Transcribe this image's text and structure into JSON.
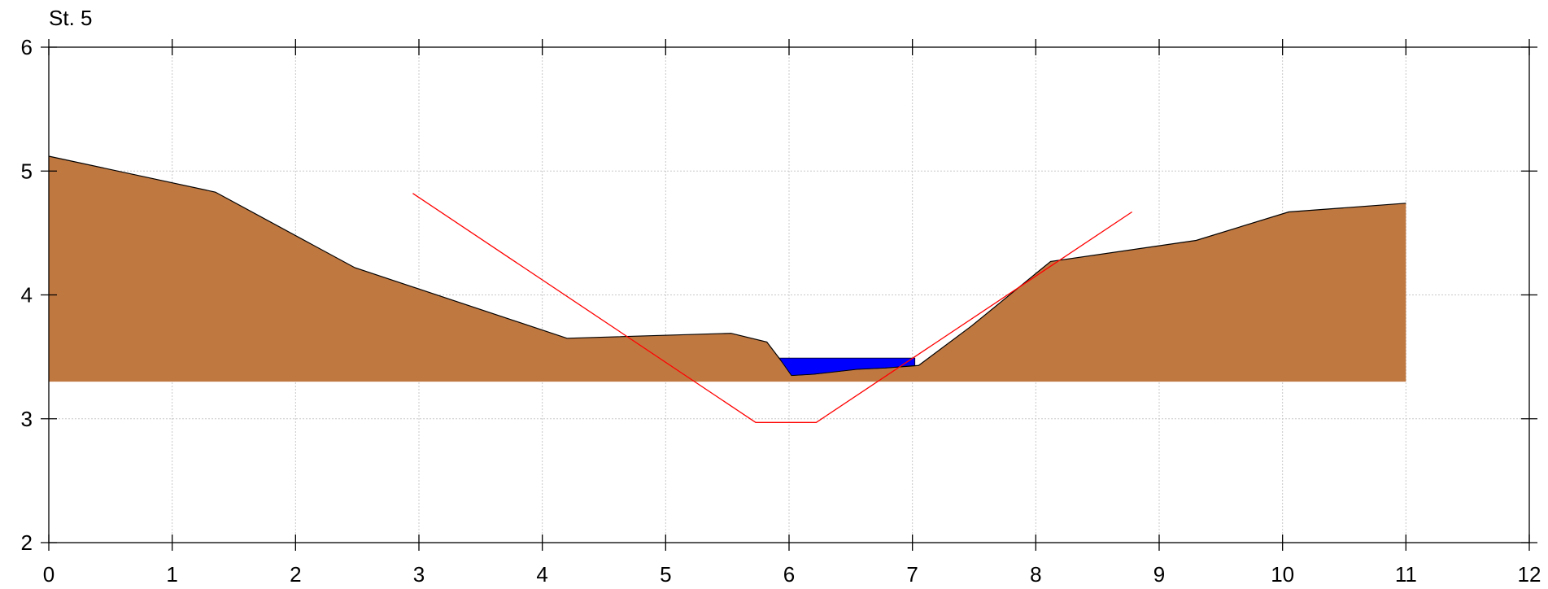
{
  "chart_data": {
    "type": "area",
    "title": "St. 5",
    "xlabel": "",
    "ylabel": "",
    "xlim": [
      0,
      12
    ],
    "ylim": [
      2,
      6
    ],
    "x_ticks": [
      0,
      1,
      2,
      3,
      4,
      5,
      6,
      7,
      8,
      9,
      10,
      11,
      12
    ],
    "y_ticks": [
      2,
      3,
      4,
      5,
      6
    ],
    "grid": true,
    "baseline": 3.3,
    "series": [
      {
        "kind": "terrain",
        "color": "#c07841",
        "outline": "#000000",
        "x": [
          0,
          1.35,
          2.48,
          4.2,
          5.53,
          5.82,
          5.95,
          6.02,
          6.2,
          6.55,
          6.78,
          7.05,
          7.48,
          8.12,
          9.3,
          10.05,
          11.0
        ],
        "y": [
          5.12,
          4.83,
          4.22,
          3.65,
          3.69,
          3.62,
          3.45,
          3.35,
          3.36,
          3.4,
          3.41,
          3.43,
          3.75,
          4.27,
          4.44,
          4.67,
          4.74
        ]
      },
      {
        "kind": "water",
        "color": "#0000ff",
        "level": 3.49,
        "x": [
          5.92,
          7.02
        ],
        "bed_x": [
          5.92,
          6.02,
          6.2,
          6.55,
          6.78,
          7.02
        ],
        "bed_y": [
          3.49,
          3.35,
          3.36,
          3.4,
          3.41,
          3.43
        ]
      },
      {
        "kind": "design",
        "color": "#ff0000",
        "x": [
          2.95,
          5.73,
          6.22,
          8.78
        ],
        "y": [
          4.82,
          2.97,
          2.97,
          4.67
        ]
      }
    ]
  }
}
